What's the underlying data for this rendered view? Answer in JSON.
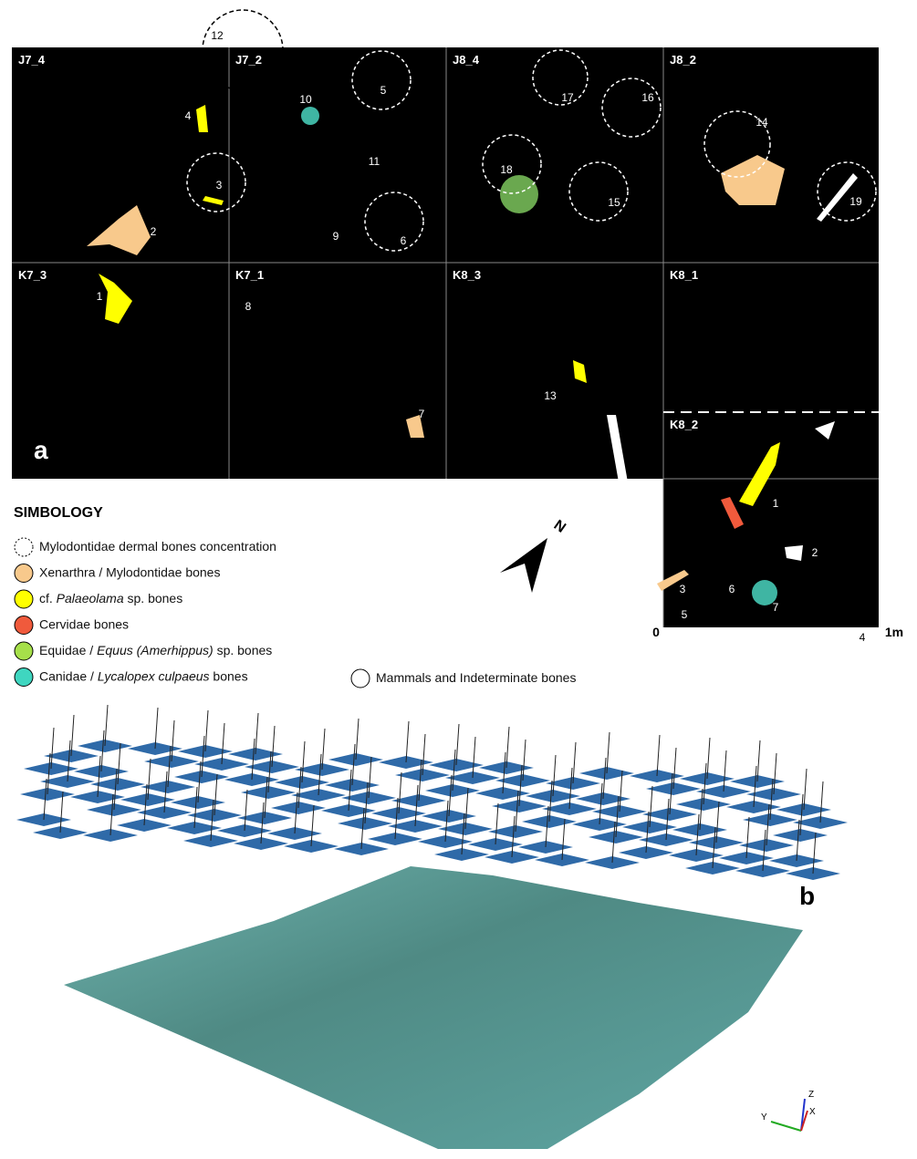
{
  "panel_a": {
    "label": "a",
    "squares": [
      "J7_4",
      "J7_2",
      "J8_4",
      "J8_2",
      "K7_3",
      "K7_1",
      "K8_3",
      "K8_1",
      "K8_2"
    ],
    "concentration_labels": [
      "12",
      "5",
      "3",
      "6",
      "17",
      "16",
      "18",
      "15",
      "14",
      "19"
    ],
    "bone_labels": [
      "2",
      "4",
      "10",
      "11",
      "9",
      "1",
      "8",
      "7",
      "13"
    ],
    "k8_2_labels": [
      "1",
      "2",
      "3",
      "6",
      "7",
      "5",
      "4"
    ],
    "scale": {
      "start": "0",
      "end": "1m"
    },
    "north": "N"
  },
  "legend": {
    "title": "SIMBOLOGY",
    "items": [
      {
        "parts": [
          "Mylodontidae dermal bones concentration"
        ],
        "color": "#ffffff",
        "dashed": true
      },
      {
        "parts": [
          "Xenarthra / Mylodontidae bones"
        ],
        "color": "#f8c98c"
      },
      {
        "parts": [
          "cf. ",
          "Palaeolama",
          " sp. bones"
        ],
        "color": "#ffff00"
      },
      {
        "parts": [
          "Cervidae bones"
        ],
        "color": "#f05a3c"
      },
      {
        "parts": [
          "Equidae / ",
          "Equus (Amerhippus)",
          " sp. bones"
        ],
        "color": "#a6e04a"
      },
      {
        "parts": [
          "Canidae / ",
          "Lycalopex culpaeus",
          " bones"
        ],
        "color": "#3fd6c0"
      },
      {
        "parts": [
          "Mammals and Indeterminate bones"
        ],
        "color": "#ffffff"
      }
    ]
  },
  "panel_b": {
    "label": "b",
    "axes": [
      "Z",
      "Y",
      "X"
    ]
  }
}
